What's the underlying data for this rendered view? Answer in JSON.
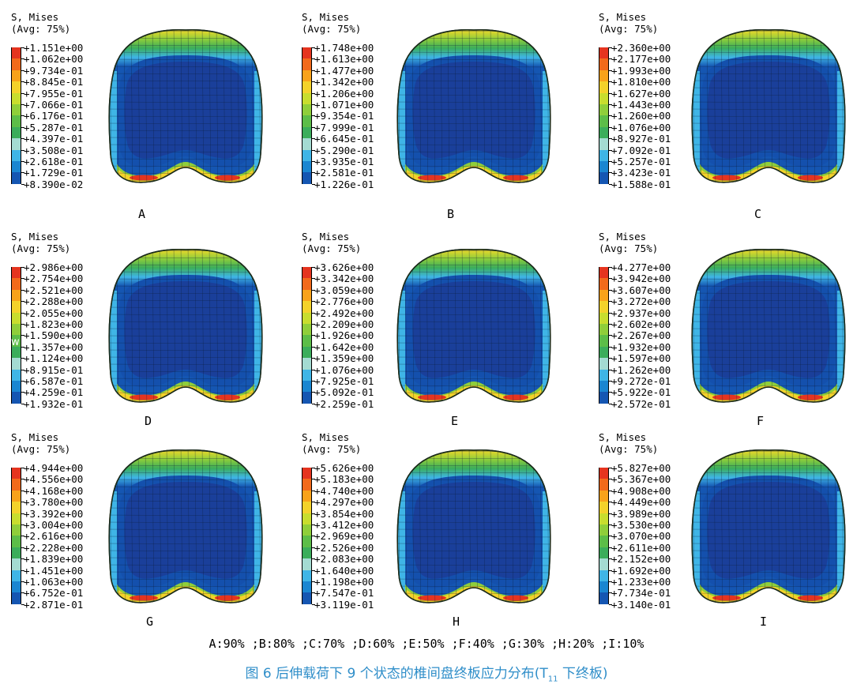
{
  "panels": [
    {
      "id": "A",
      "title": "S, Mises",
      "subtitle": "(Avg: 75%)",
      "values": [
        "+1.151e+00",
        "+1.062e+00",
        "+9.734e-01",
        "+8.845e-01",
        "+7.955e-01",
        "+7.066e-01",
        "+6.176e-01",
        "+5.287e-01",
        "+4.397e-01",
        "+3.508e-01",
        "+2.618e-01",
        "+1.729e-01",
        "+8.390e-02"
      ]
    },
    {
      "id": "B",
      "title": "S, Mises",
      "subtitle": "(Avg: 75%)",
      "values": [
        "+1.748e+00",
        "+1.613e+00",
        "+1.477e+00",
        "+1.342e+00",
        "+1.206e+00",
        "+1.071e+00",
        "+9.354e-01",
        "+7.999e-01",
        "+6.645e-01",
        "+5.290e-01",
        "+3.935e-01",
        "+2.581e-01",
        "+1.226e-01"
      ]
    },
    {
      "id": "C",
      "title": "S, Mises",
      "subtitle": "(Avg: 75%)",
      "values": [
        "+2.360e+00",
        "+2.177e+00",
        "+1.993e+00",
        "+1.810e+00",
        "+1.627e+00",
        "+1.443e+00",
        "+1.260e+00",
        "+1.076e+00",
        "+8.927e-01",
        "+7.092e-01",
        "+5.257e-01",
        "+3.423e-01",
        "+1.588e-01"
      ]
    },
    {
      "id": "D",
      "title": "S, Mises",
      "subtitle": "(Avg: 75%)",
      "values": [
        "+2.986e+00",
        "+2.754e+00",
        "+2.521e+00",
        "+2.288e+00",
        "+2.055e+00",
        "+1.823e+00",
        "+1.590e+00",
        "+1.357e+00",
        "+1.124e+00",
        "+8.915e-01",
        "+6.587e-01",
        "+4.259e-01",
        "+1.932e-01"
      ]
    },
    {
      "id": "E",
      "title": "S, Mises",
      "subtitle": "(Avg: 75%)",
      "values": [
        "+3.626e+00",
        "+3.342e+00",
        "+3.059e+00",
        "+2.776e+00",
        "+2.492e+00",
        "+2.209e+00",
        "+1.926e+00",
        "+1.642e+00",
        "+1.359e+00",
        "+1.076e+00",
        "+7.925e-01",
        "+5.092e-01",
        "+2.259e-01"
      ]
    },
    {
      "id": "F",
      "title": "S, Mises",
      "subtitle": "(Avg: 75%)",
      "values": [
        "+4.277e+00",
        "+3.942e+00",
        "+3.607e+00",
        "+3.272e+00",
        "+2.937e+00",
        "+2.602e+00",
        "+2.267e+00",
        "+1.932e+00",
        "+1.597e+00",
        "+1.262e+00",
        "+9.272e-01",
        "+5.922e-01",
        "+2.572e-01"
      ]
    },
    {
      "id": "G",
      "title": "S, Mises",
      "subtitle": "(Avg: 75%)",
      "values": [
        "+4.944e+00",
        "+4.556e+00",
        "+4.168e+00",
        "+3.780e+00",
        "+3.392e+00",
        "+3.004e+00",
        "+2.616e+00",
        "+2.228e+00",
        "+1.839e+00",
        "+1.451e+00",
        "+1.063e+00",
        "+6.752e-01",
        "+2.871e-01"
      ]
    },
    {
      "id": "H",
      "title": "S, Mises",
      "subtitle": "(Avg: 75%)",
      "values": [
        "+5.626e+00",
        "+5.183e+00",
        "+4.740e+00",
        "+4.297e+00",
        "+3.854e+00",
        "+3.412e+00",
        "+2.969e+00",
        "+2.526e+00",
        "+2.083e+00",
        "+1.640e+00",
        "+1.198e+00",
        "+7.547e-01",
        "+3.119e-01"
      ]
    },
    {
      "id": "I",
      "title": "S, Mises",
      "subtitle": "(Avg: 75%)",
      "values": [
        "+5.827e+00",
        "+5.367e+00",
        "+4.908e+00",
        "+4.449e+00",
        "+3.989e+00",
        "+3.530e+00",
        "+3.070e+00",
        "+2.611e+00",
        "+2.152e+00",
        "+1.692e+00",
        "+1.233e+00",
        "+7.734e-01",
        "+3.140e-01"
      ]
    }
  ],
  "colormap": [
    "#e5341f",
    "#f26a1b",
    "#f8a21a",
    "#f3d22a",
    "#c8dd2e",
    "#8fce3a",
    "#5cbd48",
    "#3bad5b",
    "#a4dbd2",
    "#3fb5e6",
    "#1a86d1",
    "#1556b2",
    "#123d95"
  ],
  "watermark": "w        om",
  "caption_states": "A:90% ;B:80% ;C:70% ;D:60% ;E:50% ;F:40% ;G:30% ;H:20% ;I:10%",
  "figure_caption": {
    "prefix": "图 6    后伸载荷下 9 个状态的椎间盘终板应力分布(T",
    "subscript": "11",
    "suffix": " 下终板)"
  }
}
